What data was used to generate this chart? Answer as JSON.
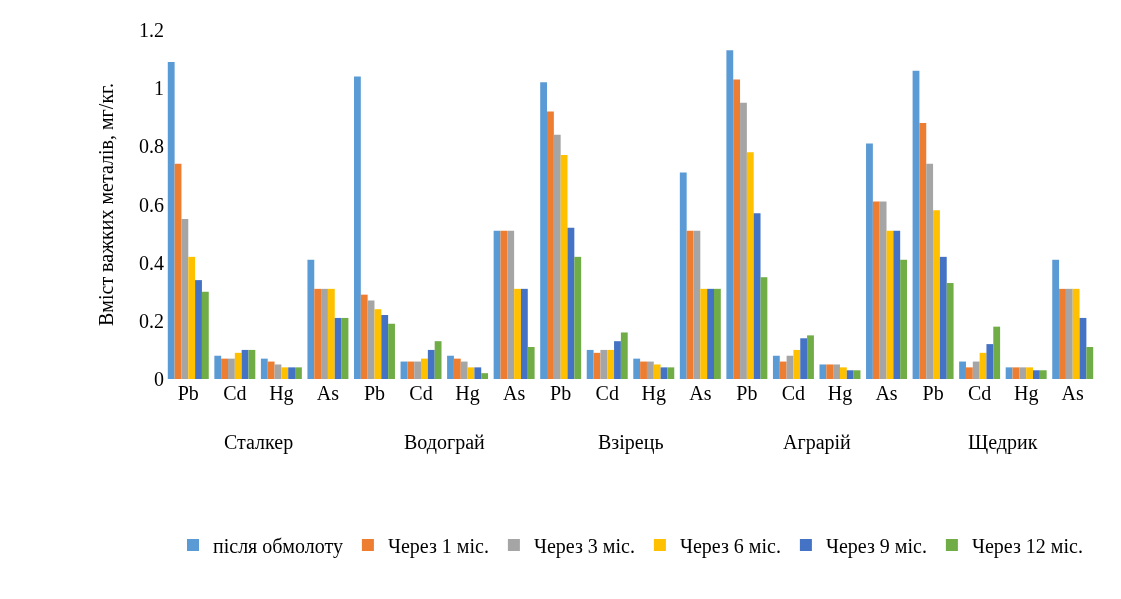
{
  "chart_data": {
    "type": "bar",
    "ylabel": "Вміст важких металів, мг/кг.",
    "categories": [
      "Pb",
      "Cd",
      "Hg",
      "As",
      "Pb",
      "Cd",
      "Hg",
      "As",
      "Pb",
      "Cd",
      "Hg",
      "As",
      "Pb",
      "Cd",
      "Hg",
      "As",
      "Pb",
      "Cd",
      "Hg",
      "As"
    ],
    "annotations": [
      "Сталкер",
      "Водограй",
      "Взірець",
      "Аграрій",
      "Щедрик"
    ],
    "series": [
      {
        "name": "після обмолоту",
        "color": "#5b9bd5",
        "values": [
          1.09,
          0.08,
          0.07,
          0.41,
          1.04,
          0.06,
          0.08,
          0.51,
          1.02,
          0.1,
          0.07,
          0.71,
          1.13,
          0.08,
          0.05,
          0.81,
          1.06,
          0.06,
          0.04,
          0.41
        ]
      },
      {
        "name": "Через 1 міс.",
        "color": "#ed7d31",
        "values": [
          0.74,
          0.07,
          0.06,
          0.31,
          0.29,
          0.06,
          0.07,
          0.51,
          0.92,
          0.09,
          0.06,
          0.51,
          1.03,
          0.06,
          0.05,
          0.61,
          0.88,
          0.04,
          0.04,
          0.31
        ]
      },
      {
        "name": "Через 3 міс.",
        "color": "#a5a5a5",
        "values": [
          0.55,
          0.07,
          0.05,
          0.31,
          0.27,
          0.06,
          0.06,
          0.51,
          0.84,
          0.1,
          0.06,
          0.51,
          0.95,
          0.08,
          0.05,
          0.61,
          0.74,
          0.06,
          0.04,
          0.31
        ]
      },
      {
        "name": "Через 6 міс.",
        "color": "#ffc000",
        "values": [
          0.42,
          0.09,
          0.04,
          0.31,
          0.24,
          0.07,
          0.04,
          0.31,
          0.77,
          0.1,
          0.05,
          0.31,
          0.78,
          0.1,
          0.04,
          0.51,
          0.58,
          0.09,
          0.04,
          0.31
        ]
      },
      {
        "name": "Через 9 міс.",
        "color": "#4472c4",
        "values": [
          0.34,
          0.1,
          0.04,
          0.21,
          0.22,
          0.1,
          0.04,
          0.31,
          0.52,
          0.13,
          0.04,
          0.31,
          0.57,
          0.14,
          0.03,
          0.51,
          0.42,
          0.12,
          0.03,
          0.21
        ]
      },
      {
        "name": "Через 12 міс.",
        "color": "#70ad47",
        "values": [
          0.3,
          0.1,
          0.04,
          0.21,
          0.19,
          0.13,
          0.02,
          0.11,
          0.42,
          0.16,
          0.04,
          0.31,
          0.35,
          0.15,
          0.03,
          0.41,
          0.33,
          0.18,
          0.03,
          0.11
        ]
      }
    ],
    "ylim": [
      0,
      1.2
    ],
    "yticks": [
      0,
      0.2,
      0.4,
      0.6,
      0.8,
      1,
      1.2
    ],
    "legend": "bottom"
  }
}
